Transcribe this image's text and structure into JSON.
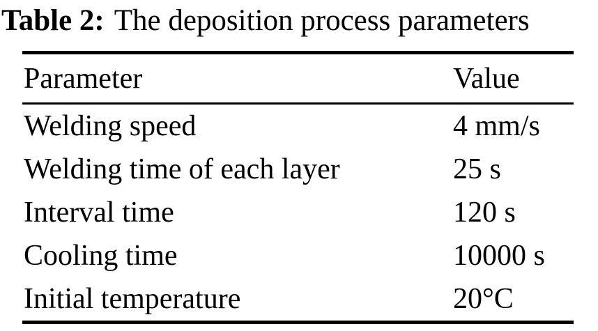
{
  "caption": {
    "label": "Table 2:",
    "text": "The deposition process parameters"
  },
  "table": {
    "headers": {
      "parameter": "Parameter",
      "value": "Value"
    },
    "rows": [
      {
        "parameter": "Welding speed",
        "value": "4 mm/s"
      },
      {
        "parameter": "Welding time of each layer",
        "value": "25 s"
      },
      {
        "parameter": "Interval time",
        "value": "120 s"
      },
      {
        "parameter": "Cooling time",
        "value": "10000 s"
      },
      {
        "parameter": "Initial temperature",
        "value": "20°C"
      }
    ]
  }
}
